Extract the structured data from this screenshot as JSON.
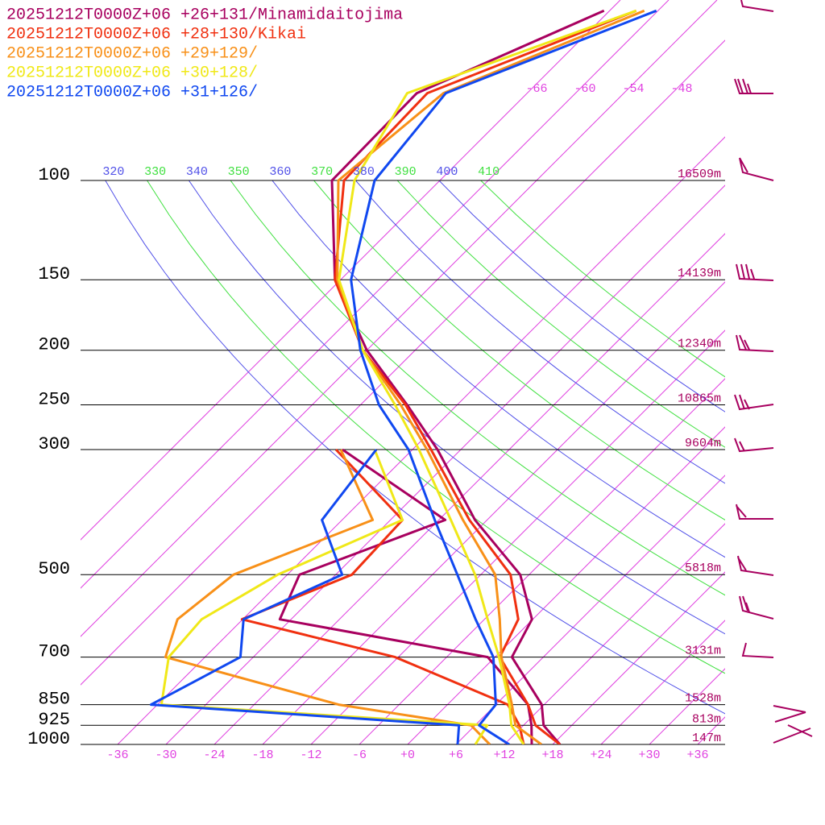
{
  "chart_data": {
    "type": "skewt",
    "ylim": [
      1000,
      100
    ],
    "xlim": [
      -40.6,
      39.4
    ],
    "yticks": [
      1000,
      925,
      850,
      700,
      500,
      300,
      250,
      200,
      150,
      100
    ],
    "height_labels": [
      "147m",
      "813m",
      "1528m",
      "3131m",
      "5818m",
      "9604m",
      "10865m",
      "12340m",
      "14139m",
      "16509m"
    ],
    "xticks": [
      -36,
      -30,
      -24,
      -18,
      -12,
      -6,
      {
        "value": 0,
        "label": "+0"
      },
      {
        "value": 6,
        "label": "+6"
      },
      {
        "value": 12,
        "label": "+12"
      },
      {
        "value": 18,
        "label": "+18"
      },
      {
        "value": 24,
        "label": "+24"
      },
      {
        "value": 30,
        "label": "+30"
      },
      {
        "value": 36,
        "label": "+36"
      }
    ],
    "top_xticks": [
      -66,
      -60,
      -54,
      -48
    ],
    "isotherm_color": "#e040e0",
    "theta_ticks": [
      320,
      330,
      340,
      350,
      360,
      370,
      380,
      390,
      400,
      410
    ],
    "theta_colors": [
      "#5050e8",
      "#40e040"
    ],
    "pressure": [
      1000,
      925,
      850,
      700,
      600,
      500,
      400,
      300,
      250,
      200,
      150,
      100,
      70,
      50
    ],
    "series": [
      {
        "name": "20251212T0000Z+06 +26+131/Minamidaitojima",
        "color": "#a8005f",
        "temperature": [
          18.9,
          14.5,
          11.7,
          2.1,
          -0.1,
          -7.1,
          -19.5,
          -32.9,
          -42.2,
          -54.0,
          -66.7,
          -79.4,
          -79.7,
          -66.7
        ],
        "dewpoint": [
          15.4,
          13.0,
          10.0,
          -0.9,
          -31.4,
          -34.5,
          -23.2,
          -44.7,
          null,
          null,
          null,
          null,
          null,
          null
        ]
      },
      {
        "name": "20251212T0000Z+06 +28+130/Kikai",
        "color": "#f03010",
        "temperature": [
          18.9,
          13.5,
          10.0,
          0.6,
          -1.8,
          -8.3,
          -20.2,
          -33.7,
          -42.4,
          -54.5,
          -66.7,
          -77.9,
          -78.4,
          -62.7
        ],
        "dewpoint": [
          14.4,
          11.5,
          7.5,
          -12.4,
          -36.1,
          -28.0,
          -28.5,
          -45.5,
          null,
          null,
          null,
          null,
          null,
          null
        ]
      },
      {
        "name": "20251212T0000Z+06 +29+129/",
        "color": "#f89018",
        "temperature": [
          16.6,
          11.0,
          8.0,
          0.8,
          -4.1,
          -10.2,
          -21.0,
          -34.2,
          -43.0,
          -54.5,
          -66.4,
          -78.6,
          -76.4,
          -61.7
        ],
        "dewpoint": [
          10.2,
          5.5,
          -13.5,
          -40.9,
          -44.1,
          -42.7,
          -32.2,
          -44.9,
          null,
          null,
          null,
          null,
          null,
          null
        ]
      },
      {
        "name": "20251212T0000Z+06 +30+128/",
        "color": "#f0e818",
        "temperature": [
          14.4,
          10.5,
          7.7,
          0.5,
          -5.6,
          -12.7,
          -22.5,
          -35.2,
          -43.7,
          -54.5,
          -66.2,
          -76.6,
          -80.9,
          -62.7
        ],
        "dewpoint": [
          8.4,
          7.5,
          -35.5,
          -40.5,
          -41.1,
          -37.2,
          -28.5,
          -40.7,
          null,
          null,
          null,
          null,
          null,
          null
        ]
      },
      {
        "name": "20251212T0000Z+06 +31+126/",
        "color": "#1048f0",
        "temperature": [
          12.6,
          6.5,
          6.0,
          -0.2,
          -7.1,
          -14.9,
          -24.5,
          -36.5,
          -45.7,
          -54.8,
          -64.7,
          -74.1,
          -76.1,
          -60.2
        ],
        "dewpoint": [
          6.2,
          4.0,
          -36.8,
          -31.6,
          -35.9,
          -29.2,
          -38.5,
          -40.5,
          null,
          null,
          null,
          null,
          null,
          null
        ]
      }
    ]
  }
}
